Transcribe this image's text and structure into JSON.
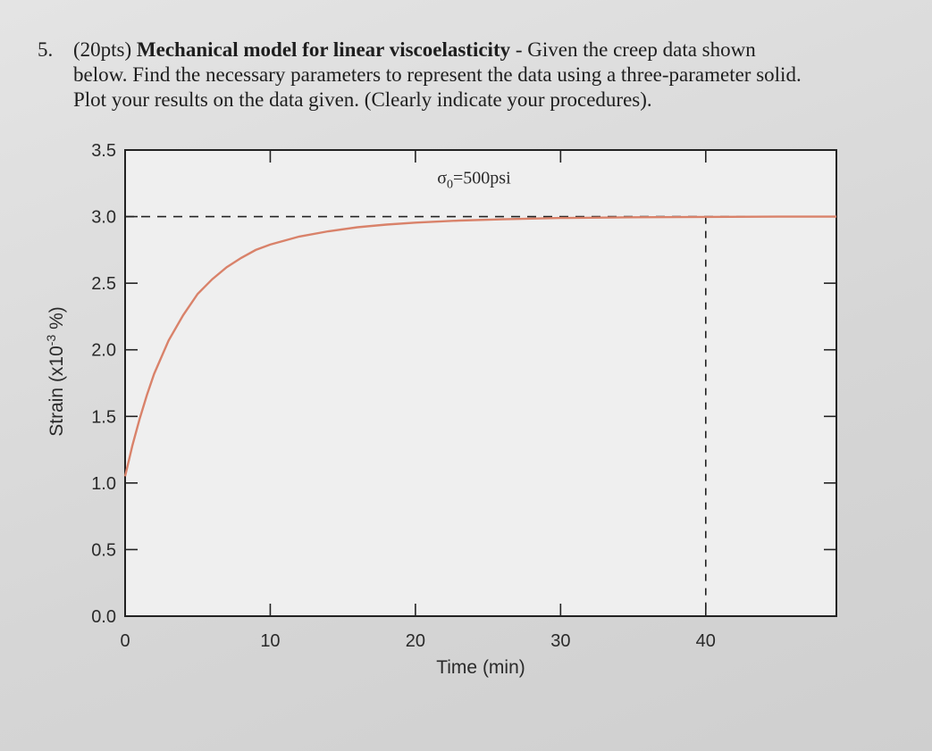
{
  "problem": {
    "number": "5.",
    "points": "(20pts)",
    "title": "Mechanical model for linear viscoelasticity",
    "text_line1": " - Given the creep data shown",
    "text_line2": "below. Find the necessary parameters to represent the data using a three-parameter solid.",
    "text_line3": "Plot your results on the data given. (Clearly indicate your procedures)."
  },
  "chart_data": {
    "type": "line",
    "title": "",
    "xlabel": "Time (min)",
    "ylabel_prefix": "Strain (x10",
    "ylabel_exp": "-3",
    "ylabel_suffix": " %)",
    "xlim": [
      0,
      49
    ],
    "ylim": [
      0,
      3.5
    ],
    "xticks": [
      0,
      10,
      20,
      30,
      40
    ],
    "xtick_labels": [
      "0",
      "10",
      "20",
      "30",
      "40"
    ],
    "yticks": [
      0,
      0.5,
      1.0,
      1.5,
      2.0,
      2.5,
      3.0,
      3.5
    ],
    "ytick_labels": [
      "0.0",
      "0.5",
      "1.0",
      "1.5",
      "2.0",
      "2.5",
      "3.0",
      "3.5"
    ],
    "annotation_sigma": "σ",
    "annotation_sub": "0",
    "annotation_rest": "=500psi",
    "asymptote_y": 3.0,
    "vline_x": 40,
    "line_color": "#d9826a",
    "series": [
      {
        "x": [
          0,
          0.5,
          1,
          1.5,
          2,
          3,
          4,
          5,
          6,
          7,
          8,
          9,
          10,
          12,
          14,
          16,
          18,
          20,
          23,
          26,
          30,
          35,
          40,
          45,
          49
        ],
        "y": [
          1.05,
          1.28,
          1.48,
          1.66,
          1.82,
          2.07,
          2.26,
          2.42,
          2.53,
          2.62,
          2.69,
          2.75,
          2.79,
          2.85,
          2.89,
          2.92,
          2.94,
          2.955,
          2.97,
          2.98,
          2.99,
          2.995,
          2.998,
          3.0,
          3.0
        ]
      }
    ]
  }
}
